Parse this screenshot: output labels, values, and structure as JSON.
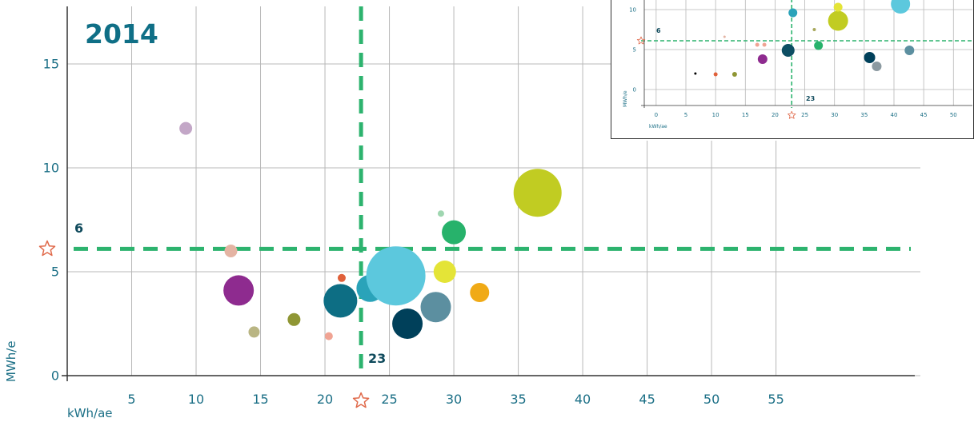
{
  "chart_data": [
    {
      "type": "scatter",
      "title": "2014",
      "xlabel": "kWh/ae",
      "ylabel": "MWh/e",
      "xlim": [
        0,
        59
      ],
      "ylim": [
        0,
        17.5
      ],
      "x_ticks": [
        5,
        10,
        15,
        20,
        25,
        30,
        35,
        40,
        45,
        50,
        55
      ],
      "y_ticks": [
        0,
        5,
        10,
        15
      ],
      "x_tick_labels": [
        "5",
        "10",
        "15",
        "20",
        "25",
        "30",
        "35",
        "40",
        "45",
        "50",
        "55"
      ],
      "y_tick_labels": [
        "0",
        "5",
        "10",
        "15"
      ],
      "grid": true,
      "ref_x": 22.8,
      "ref_y": 6.1,
      "ref_x_label": "23",
      "ref_y_label": "6",
      "ref_color": "#2db36e",
      "marker_color": "#e0694a",
      "points": [
        {
          "x": 9.2,
          "y": 11.9,
          "size": 8,
          "color": "#c3a7c7"
        },
        {
          "x": 12.7,
          "y": 6.0,
          "size": 8,
          "color": "#e4b4a3"
        },
        {
          "x": 13.3,
          "y": 4.1,
          "size": 19,
          "color": "#8e2b8f"
        },
        {
          "x": 14.5,
          "y": 2.1,
          "size": 7,
          "color": "#b9b583"
        },
        {
          "x": 17.6,
          "y": 2.7,
          "size": 8,
          "color": "#8f9634"
        },
        {
          "x": 20.3,
          "y": 1.9,
          "size": 5,
          "color": "#f0a393"
        },
        {
          "x": 21.3,
          "y": 4.7,
          "size": 5,
          "color": "#e0603a"
        },
        {
          "x": 21.2,
          "y": 3.6,
          "size": 21,
          "color": "#0d6e84"
        },
        {
          "x": 23.5,
          "y": 4.2,
          "size": 17,
          "color": "#2aa3b9"
        },
        {
          "x": 25.5,
          "y": 4.8,
          "size": 37,
          "color": "#5cc8dd"
        },
        {
          "x": 26.4,
          "y": 2.5,
          "size": 19,
          "color": "#00405a"
        },
        {
          "x": 28.6,
          "y": 3.3,
          "size": 19,
          "color": "#5c8fa0"
        },
        {
          "x": 29.0,
          "y": 7.8,
          "size": 4,
          "color": "#9fd6b0"
        },
        {
          "x": 30.0,
          "y": 6.9,
          "size": 15,
          "color": "#27b26b"
        },
        {
          "x": 29.3,
          "y": 5.0,
          "size": 14,
          "color": "#e4e437"
        },
        {
          "x": 32.0,
          "y": 4.0,
          "size": 12,
          "color": "#f0aa16"
        },
        {
          "x": 36.5,
          "y": 8.8,
          "size": 30,
          "color": "#c1cc22"
        }
      ]
    },
    {
      "type": "scatter",
      "title": "",
      "xlabel": "kWh/ae",
      "ylabel": "MWh/e",
      "xlim": [
        -2,
        54
      ],
      "ylim": [
        -2,
        11
      ],
      "x_ticks": [
        0,
        5,
        10,
        15,
        20,
        25,
        30,
        35,
        40,
        45,
        50
      ],
      "y_ticks": [
        0,
        5,
        10
      ],
      "x_tick_labels": [
        "0",
        "5",
        "10",
        "15",
        "20",
        "25",
        "30",
        "35",
        "40",
        "45",
        "50"
      ],
      "y_tick_labels": [
        "0",
        "5",
        "10"
      ],
      "grid": true,
      "ref_x": 22.8,
      "ref_y": 6.1,
      "ref_x_label": "23",
      "ref_y_label": "6",
      "ref_color": "#2db36e",
      "marker_color": "#e0694a",
      "points": [
        {
          "x": 6.6,
          "y": 2.0,
          "size": 1.5,
          "color": "#000000"
        },
        {
          "x": 10.0,
          "y": 1.9,
          "size": 2.5,
          "color": "#e0603a"
        },
        {
          "x": 11.5,
          "y": 6.6,
          "size": 1.5,
          "color": "#e4b4a3"
        },
        {
          "x": 13.2,
          "y": 1.9,
          "size": 3,
          "color": "#8f9634"
        },
        {
          "x": 17.0,
          "y": 5.6,
          "size": 2.5,
          "color": "#f0a393"
        },
        {
          "x": 18.2,
          "y": 5.6,
          "size": 2.5,
          "color": "#f0a393"
        },
        {
          "x": 17.9,
          "y": 3.8,
          "size": 6,
          "color": "#8e2b8f"
        },
        {
          "x": 22.2,
          "y": 4.9,
          "size": 8,
          "color": "#0d4e63"
        },
        {
          "x": 23.0,
          "y": 9.6,
          "size": 5.5,
          "color": "#2aa3b9"
        },
        {
          "x": 26.6,
          "y": 7.5,
          "size": 2,
          "color": "#a8a85c"
        },
        {
          "x": 27.3,
          "y": 5.5,
          "size": 5.5,
          "color": "#27b26b"
        },
        {
          "x": 30.6,
          "y": 8.6,
          "size": 12.5,
          "color": "#c1cc22"
        },
        {
          "x": 30.6,
          "y": 10.3,
          "size": 5.5,
          "color": "#e4e437"
        },
        {
          "x": 35.9,
          "y": 4.0,
          "size": 7,
          "color": "#00405a"
        },
        {
          "x": 37.1,
          "y": 2.9,
          "size": 6,
          "color": "#8c9aa1"
        },
        {
          "x": 41.1,
          "y": 10.7,
          "size": 12,
          "color": "#5cc8dd"
        },
        {
          "x": 42.6,
          "y": 4.9,
          "size": 6,
          "color": "#5c8fa0"
        }
      ]
    }
  ]
}
